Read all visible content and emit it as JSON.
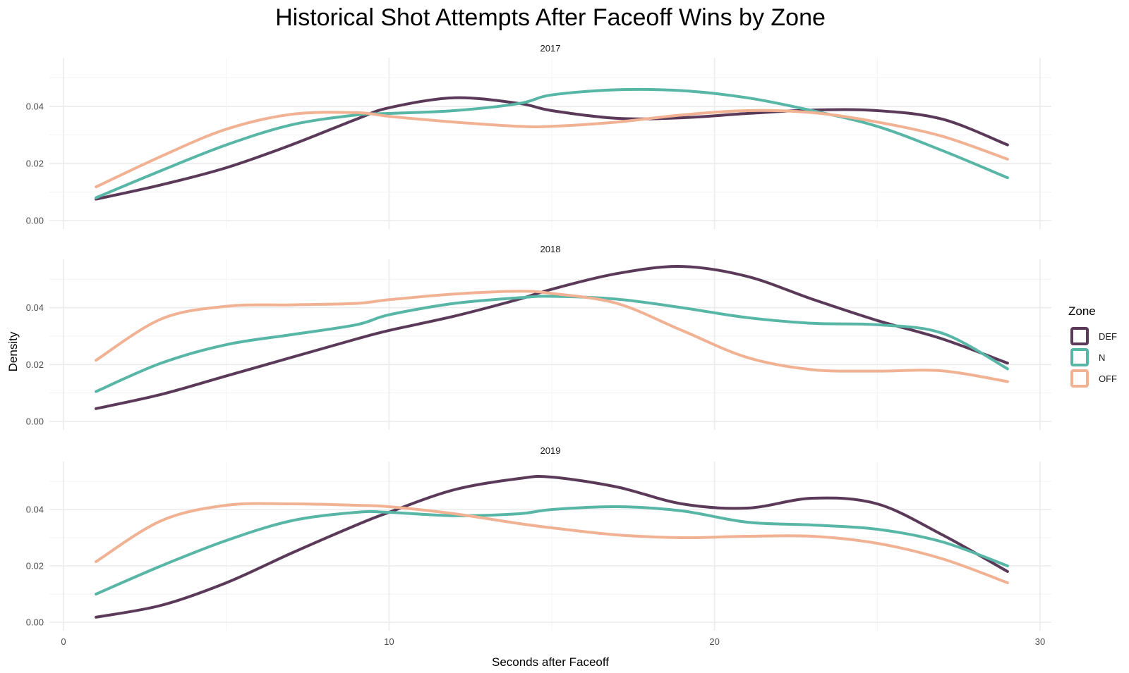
{
  "chart_data": {
    "type": "line",
    "title": "Historical Shot Attempts After Faceoff Wins by Zone",
    "xlabel": "Seconds after Faceoff",
    "ylabel": "Density",
    "xlim": [
      0,
      30
    ],
    "ylim": [
      0,
      0.057
    ],
    "x_ticks": [
      0,
      10,
      20,
      30
    ],
    "x_tick_labels": [
      "0",
      "10",
      "20",
      "30"
    ],
    "y_ticks": [
      0,
      0.02,
      0.04
    ],
    "y_tick_labels": [
      "0.00",
      "0.02",
      "0.04"
    ],
    "grid": true,
    "legend": {
      "title": "Zone",
      "placement": "right",
      "entries": [
        {
          "name": "DEF",
          "color": "#5b3a59"
        },
        {
          "name": "N",
          "color": "#57b6a6"
        },
        {
          "name": "OFF",
          "color": "#f1b294"
        }
      ]
    },
    "x": [
      1,
      3,
      5,
      7,
      9,
      10,
      12,
      14,
      15,
      17,
      19,
      21,
      23,
      25,
      27,
      29
    ],
    "panels": [
      {
        "label": "2017",
        "series": [
          {
            "name": "DEF",
            "values": [
              0.0075,
              0.0125,
              0.0185,
              0.0265,
              0.0355,
              0.0395,
              0.043,
              0.041,
              0.0385,
              0.0358,
              0.036,
              0.0375,
              0.0387,
              0.0385,
              0.0355,
              0.0265
            ]
          },
          {
            "name": "N",
            "values": [
              0.008,
              0.0175,
              0.0265,
              0.0335,
              0.037,
              0.0375,
              0.0385,
              0.041,
              0.044,
              0.0458,
              0.0455,
              0.043,
              0.0385,
              0.033,
              0.0245,
              0.015
            ]
          },
          {
            "name": "OFF",
            "values": [
              0.0118,
              0.0225,
              0.032,
              0.0372,
              0.0378,
              0.0365,
              0.0345,
              0.033,
              0.033,
              0.0345,
              0.037,
              0.0385,
              0.0378,
              0.0345,
              0.0295,
              0.0215
            ]
          }
        ]
      },
      {
        "label": "2018",
        "series": [
          {
            "name": "DEF",
            "values": [
              0.0045,
              0.0095,
              0.016,
              0.0225,
              0.029,
              0.032,
              0.037,
              0.043,
              0.0465,
              0.052,
              0.0545,
              0.051,
              0.043,
              0.0355,
              0.029,
              0.0205
            ]
          },
          {
            "name": "N",
            "values": [
              0.0105,
              0.0205,
              0.027,
              0.0305,
              0.034,
              0.0375,
              0.0415,
              0.0435,
              0.044,
              0.043,
              0.04,
              0.0365,
              0.0345,
              0.034,
              0.031,
              0.0185
            ]
          },
          {
            "name": "OFF",
            "values": [
              0.0215,
              0.036,
              0.0405,
              0.041,
              0.0415,
              0.0428,
              0.0448,
              0.0458,
              0.045,
              0.0415,
              0.032,
              0.0225,
              0.0182,
              0.0177,
              0.0178,
              0.014
            ]
          }
        ]
      },
      {
        "label": "2019",
        "series": [
          {
            "name": "DEF",
            "values": [
              0.0018,
              0.006,
              0.014,
              0.0245,
              0.0345,
              0.039,
              0.047,
              0.051,
              0.0515,
              0.048,
              0.042,
              0.0405,
              0.044,
              0.042,
              0.031,
              0.018
            ]
          },
          {
            "name": "N",
            "values": [
              0.01,
              0.02,
              0.029,
              0.036,
              0.039,
              0.039,
              0.0378,
              0.0385,
              0.04,
              0.041,
              0.0395,
              0.0355,
              0.0345,
              0.033,
              0.0285,
              0.02
            ]
          },
          {
            "name": "OFF",
            "values": [
              0.0215,
              0.036,
              0.0415,
              0.042,
              0.0415,
              0.041,
              0.0385,
              0.035,
              0.0335,
              0.031,
              0.03,
              0.0305,
              0.0305,
              0.028,
              0.0225,
              0.014
            ]
          }
        ]
      }
    ]
  }
}
